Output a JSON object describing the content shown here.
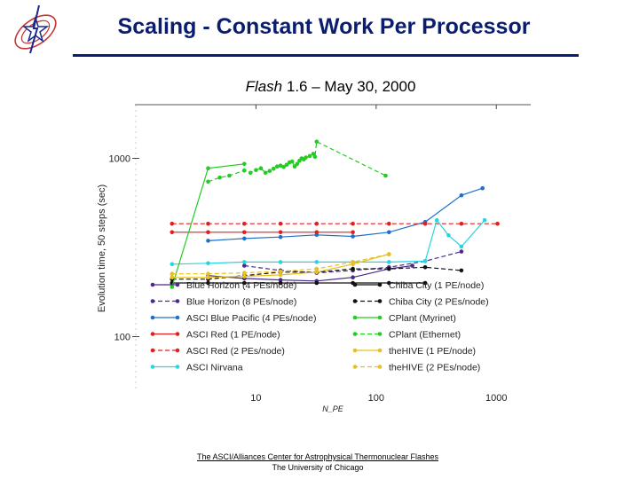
{
  "slide": {
    "title": "Scaling - Constant Work Per Processor",
    "chart_title_prefix": "Flash",
    "chart_title_rest": "1.6 – May 30, 2000",
    "footer_org": "The ASCI/Alliances Center for Astrophysical Thermonuclear Flashes",
    "footer_univ": "The University of Chicago",
    "logo_icon": "flash-center-logo-icon"
  },
  "chart_data": {
    "type": "line",
    "title": "Flash 1.6 – May 30, 2000",
    "xlabel": "N_PE",
    "ylabel": "Evolution time, 50 steps (sec)",
    "xscale": "log",
    "yscale": "log",
    "xlim": [
      1,
      2000
    ],
    "ylim": [
      50,
      2000
    ],
    "x_ticks": [
      10,
      100,
      1000
    ],
    "x_tick_labels": [
      "10",
      "100",
      "1000"
    ],
    "y_ticks": [
      100,
      1000
    ],
    "y_tick_labels": [
      "100",
      "1000"
    ],
    "legend_position": "bottom",
    "series": [
      {
        "name": "Blue Horizon (4 PEs/node)",
        "color": "#4a2a8c",
        "dash": "solid",
        "points": [
          [
            4,
            220
          ],
          [
            8,
            212
          ],
          [
            16,
            208
          ],
          [
            32,
            205
          ],
          [
            64,
            215
          ],
          [
            128,
            240
          ],
          [
            200,
            250
          ]
        ]
      },
      {
        "name": "Blue Horizon (8 PEs/node)",
        "color": "#4a2a8c",
        "dash": "dash",
        "points": [
          [
            8,
            250
          ],
          [
            16,
            235
          ],
          [
            32,
            228
          ],
          [
            64,
            235
          ],
          [
            128,
            245
          ],
          [
            256,
            265
          ],
          [
            512,
            300
          ]
        ]
      },
      {
        "name": "ASCI Blue Pacific (4 PEs/node)",
        "color": "#1e70c8",
        "dash": "solid",
        "points": [
          [
            4,
            345
          ],
          [
            8,
            355
          ],
          [
            16,
            362
          ],
          [
            32,
            372
          ],
          [
            64,
            365
          ],
          [
            128,
            385
          ],
          [
            256,
            440
          ],
          [
            512,
            620
          ],
          [
            768,
            680
          ]
        ]
      },
      {
        "name": "ASCI Red (1 PE/node)",
        "color": "#e02020",
        "dash": "solid",
        "points": [
          [
            2,
            385
          ],
          [
            4,
            385
          ],
          [
            8,
            385
          ],
          [
            16,
            385
          ],
          [
            32,
            385
          ],
          [
            64,
            385
          ]
        ]
      },
      {
        "name": "ASCI Red (2 PEs/node)",
        "color": "#e02020",
        "dash": "dash",
        "points": [
          [
            2,
            430
          ],
          [
            4,
            430
          ],
          [
            8,
            430
          ],
          [
            16,
            430
          ],
          [
            32,
            430
          ],
          [
            64,
            430
          ],
          [
            128,
            430
          ],
          [
            256,
            430
          ],
          [
            512,
            430
          ],
          [
            1024,
            430
          ]
        ]
      },
      {
        "name": "ASCI Nirvana",
        "color": "#25d6e0",
        "dash": "solid",
        "points": [
          [
            2,
            255
          ],
          [
            4,
            258
          ],
          [
            8,
            262
          ],
          [
            16,
            262
          ],
          [
            32,
            262
          ],
          [
            64,
            262
          ],
          [
            128,
            262
          ],
          [
            256,
            265
          ],
          [
            320,
            450
          ],
          [
            400,
            370
          ],
          [
            512,
            320
          ],
          [
            800,
            450
          ]
        ]
      },
      {
        "name": "Chiba City (1 PE/node)",
        "color": "#111111",
        "dash": "solid",
        "points": [
          [
            2,
            200
          ],
          [
            4,
            200
          ],
          [
            8,
            200
          ],
          [
            16,
            200
          ],
          [
            32,
            200
          ],
          [
            64,
            200
          ],
          [
            128,
            200
          ],
          [
            256,
            200
          ]
        ]
      },
      {
        "name": "Chiba City (2 PEs/node)",
        "color": "#111111",
        "dash": "dash",
        "points": [
          [
            2,
            210
          ],
          [
            4,
            210
          ],
          [
            8,
            220
          ],
          [
            16,
            230
          ],
          [
            32,
            230
          ],
          [
            64,
            240
          ],
          [
            128,
            240
          ],
          [
            256,
            245
          ],
          [
            512,
            235
          ]
        ]
      },
      {
        "name": "CPlant (Myrinet)",
        "color": "#22cc22",
        "dash": "solid",
        "points": [
          [
            2,
            190
          ],
          [
            4,
            880
          ],
          [
            8,
            930
          ]
        ]
      },
      {
        "name": "CPlant (Ethernet)",
        "color": "#22cc22",
        "dash": "dash",
        "points": [
          [
            4,
            740
          ],
          [
            5,
            780
          ],
          [
            6,
            800
          ],
          [
            8,
            855
          ],
          [
            9,
            830
          ],
          [
            10,
            860
          ],
          [
            11,
            880
          ],
          [
            12,
            830
          ],
          [
            13,
            850
          ],
          [
            14,
            875
          ],
          [
            15,
            900
          ],
          [
            16,
            910
          ],
          [
            17,
            895
          ],
          [
            18,
            920
          ],
          [
            19,
            950
          ],
          [
            20,
            960
          ],
          [
            21,
            900
          ],
          [
            22,
            930
          ],
          [
            23,
            970
          ],
          [
            24,
            1000
          ],
          [
            25,
            985
          ],
          [
            26,
            1010
          ],
          [
            28,
            1030
          ],
          [
            30,
            1060
          ],
          [
            31,
            1020
          ],
          [
            32,
            1240
          ],
          [
            120,
            800
          ]
        ]
      },
      {
        "name": "theHIVE (1 PE/node)",
        "color": "#e6c020",
        "dash": "solid",
        "points": [
          [
            2,
            215
          ],
          [
            4,
            215
          ],
          [
            8,
            218
          ],
          [
            16,
            222
          ],
          [
            32,
            230
          ],
          [
            64,
            255
          ],
          [
            128,
            290
          ]
        ]
      },
      {
        "name": "theHIVE (2 PEs/node)",
        "color": "#e6c020",
        "dash": "dash",
        "points": [
          [
            2,
            225
          ],
          [
            4,
            225
          ],
          [
            8,
            228
          ],
          [
            16,
            232
          ],
          [
            32,
            240
          ],
          [
            64,
            262
          ],
          [
            128,
            290
          ]
        ]
      }
    ]
  }
}
